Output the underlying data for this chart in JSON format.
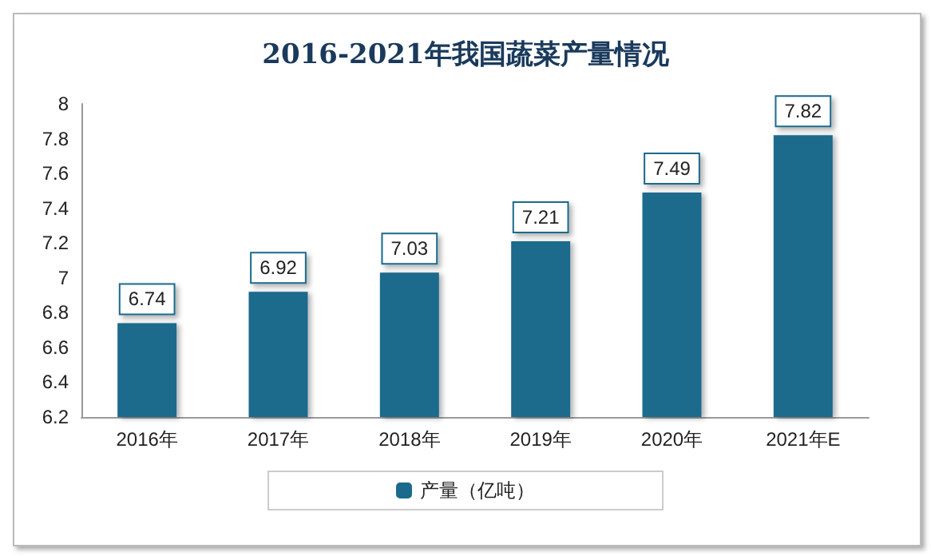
{
  "chart_data": {
    "type": "bar",
    "title": "2016-2021年我国蔬菜产量情况",
    "categories": [
      "2016年",
      "2017年",
      "2018年",
      "2019年",
      "2020年",
      "2021年E"
    ],
    "series": [
      {
        "name": "产量（亿吨）",
        "color": "#1b6a8c",
        "values": [
          6.74,
          6.92,
          7.03,
          7.21,
          7.49,
          7.82
        ]
      }
    ],
    "ylim": [
      6.2,
      8
    ],
    "yticks": [
      6.2,
      6.4,
      6.6,
      6.8,
      7,
      7.2,
      7.4,
      7.6,
      7.8,
      8
    ],
    "data_labels": true,
    "grid": false,
    "legend": "bottom"
  }
}
